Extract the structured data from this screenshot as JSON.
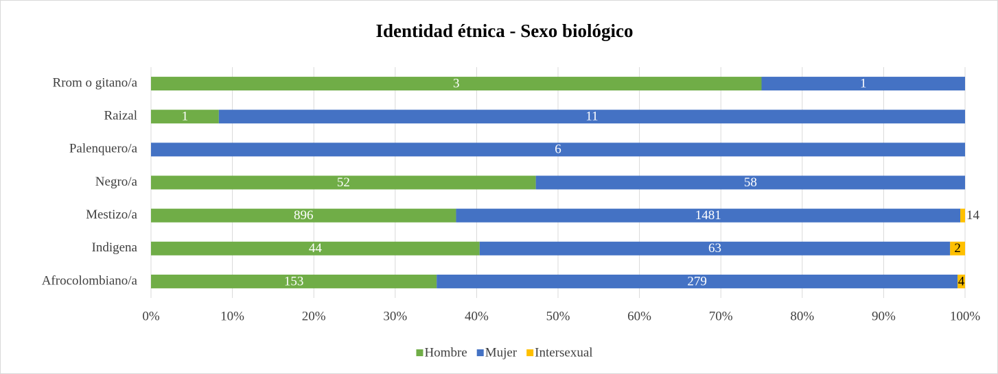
{
  "chart_data": {
    "type": "bar",
    "orientation": "horizontal",
    "stack": "percent",
    "title": "Identidad étnica - Sexo biológico",
    "categories": [
      "Rrom o gitano/a",
      "Raizal",
      "Palenquero/a",
      "Negro/a",
      "Mestizo/a",
      "Indigena",
      "Afrocolombiano/a"
    ],
    "series": [
      {
        "name": "Hombre",
        "color": "#70ad47",
        "values": [
          3,
          1,
          null,
          52,
          896,
          44,
          153
        ]
      },
      {
        "name": "Mujer",
        "color": "#4472c4",
        "values": [
          1,
          11,
          6,
          58,
          1481,
          63,
          279
        ]
      },
      {
        "name": "Intersexual",
        "color": "#ffc000",
        "values": [
          null,
          null,
          null,
          null,
          14,
          2,
          4
        ]
      }
    ],
    "xlim": [
      0,
      100
    ],
    "xticks": [
      {
        "value": 0,
        "label": "0%"
      },
      {
        "value": 10,
        "label": "10%"
      },
      {
        "value": 20,
        "label": "20%"
      },
      {
        "value": 30,
        "label": "30%"
      },
      {
        "value": 40,
        "label": "40%"
      },
      {
        "value": 50,
        "label": "50%"
      },
      {
        "value": 60,
        "label": "60%"
      },
      {
        "value": 70,
        "label": "70%"
      },
      {
        "value": 80,
        "label": "80%"
      },
      {
        "value": 90,
        "label": "90%"
      },
      {
        "value": 100,
        "label": "100%"
      }
    ],
    "grid": true,
    "legend": "bottom"
  }
}
